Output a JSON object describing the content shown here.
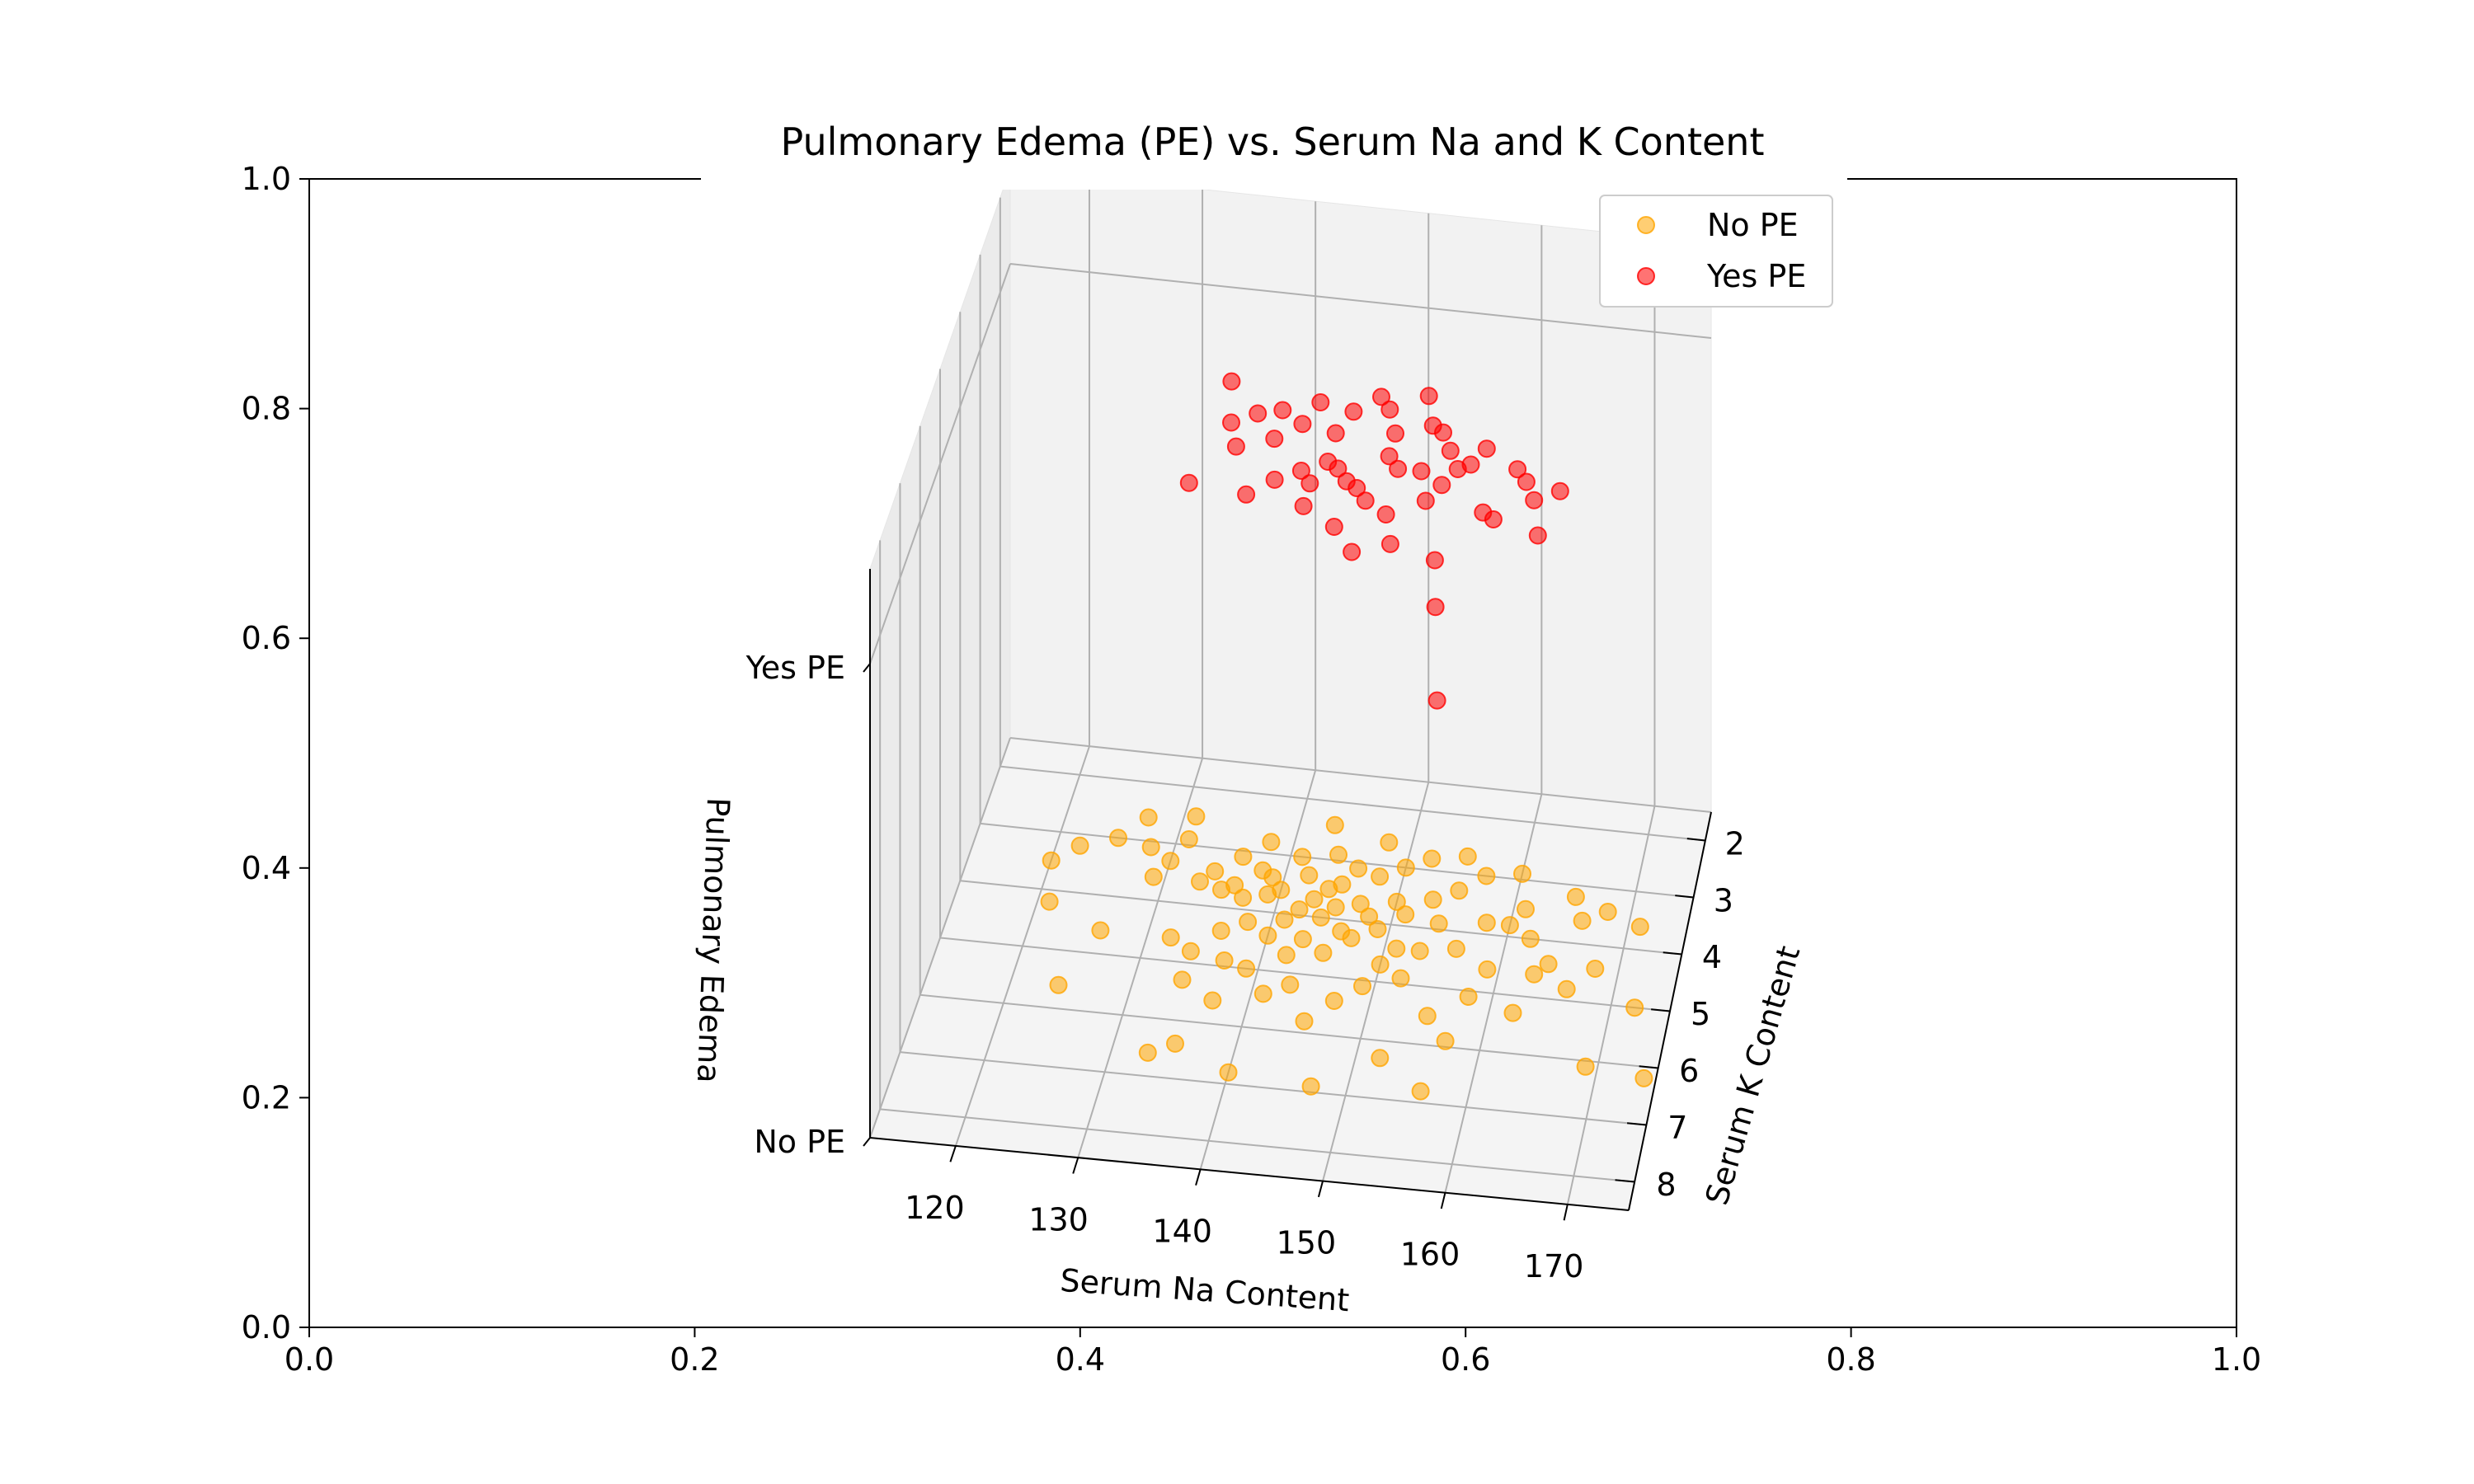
{
  "chart_data": {
    "type": "scatter",
    "title": "Pulmonary Edema (PE) vs. Serum Na and K Content",
    "xlabel": "Serum Na Content",
    "ylabel": "Serum K Content",
    "zlabel": "Pulmonary Edema",
    "xlim": [
      113,
      175
    ],
    "ylim": [
      1.5,
      8.5
    ],
    "zlim": [
      0,
      1
    ],
    "x_ticks": [
      120,
      130,
      140,
      150,
      160,
      170
    ],
    "y_ticks": [
      2,
      3,
      4,
      5,
      6,
      7,
      8
    ],
    "z_ticks": [
      0,
      1
    ],
    "z_tick_labels": [
      "No PE",
      "Yes PE"
    ],
    "outer_axes": {
      "xlim": [
        0,
        1
      ],
      "ylim": [
        0,
        1
      ],
      "x_ticks": [
        "0.0",
        "0.2",
        "0.4",
        "0.6",
        "0.8",
        "1.0"
      ],
      "y_ticks": [
        "0.0",
        "0.2",
        "0.4",
        "0.6",
        "0.8",
        "1.0"
      ]
    },
    "grid": true,
    "legend": {
      "placement": "top-right",
      "entries": [
        "No PE",
        "Yes PE"
      ]
    },
    "series": [
      {
        "name": "No PE",
        "color": "#ffa500",
        "z": 0,
        "points": [
          [
            120,
            3.5
          ],
          [
            122,
            3.2
          ],
          [
            125,
            3.0
          ],
          [
            121,
            4.2
          ],
          [
            124,
            5.6
          ],
          [
            126,
            4.6
          ],
          [
            128,
            3.1
          ],
          [
            129,
            3.6
          ],
          [
            130,
            3.3
          ],
          [
            131,
            2.9
          ],
          [
            133,
            3.6
          ],
          [
            132,
            4.6
          ],
          [
            134,
            5.3
          ],
          [
            135,
            6.4
          ],
          [
            133,
            6.6
          ],
          [
            136,
            3.1
          ],
          [
            137,
            3.8
          ],
          [
            136,
            4.4
          ],
          [
            138,
            2.8
          ],
          [
            139,
            3.4
          ],
          [
            138,
            4.2
          ],
          [
            139,
            5.0
          ],
          [
            137,
            5.6
          ],
          [
            141,
            3.0
          ],
          [
            140,
            3.6
          ],
          [
            142,
            3.3
          ],
          [
            141,
            4.1
          ],
          [
            142,
            4.7
          ],
          [
            143,
            5.2
          ],
          [
            144,
            2.9
          ],
          [
            145,
            3.4
          ],
          [
            144,
            4.0
          ],
          [
            146,
            3.1
          ],
          [
            145,
            4.6
          ],
          [
            147,
            3.7
          ],
          [
            148,
            3.2
          ],
          [
            147,
            5.4
          ],
          [
            149,
            4.1
          ],
          [
            150,
            3.0
          ],
          [
            150,
            3.6
          ],
          [
            151,
            4.4
          ],
          [
            152,
            2.8
          ],
          [
            153,
            3.5
          ],
          [
            152,
            4.9
          ],
          [
            154,
            3.9
          ],
          [
            155,
            3.3
          ],
          [
            156,
            4.3
          ],
          [
            157,
            3.0
          ],
          [
            158,
            3.8
          ],
          [
            158,
            5.1
          ],
          [
            160,
            2.9
          ],
          [
            161,
            3.5
          ],
          [
            162,
            4.0
          ],
          [
            163,
            4.6
          ],
          [
            165,
            3.2
          ],
          [
            166,
            3.6
          ],
          [
            168,
            4.4
          ],
          [
            169,
            6.1
          ],
          [
            172,
            5.0
          ],
          [
            174,
            6.2
          ],
          [
            140,
            6.8
          ],
          [
            147,
            6.9
          ],
          [
            152,
            6.3
          ],
          [
            157,
            5.9
          ],
          [
            156,
            6.8
          ],
          [
            145,
            5.8
          ],
          [
            134,
            4.8
          ],
          [
            127,
            2.6
          ],
          [
            131,
            2.5
          ],
          [
            143,
            2.4
          ],
          [
            148,
            2.6
          ],
          [
            155,
            2.7
          ],
          [
            160,
            3.8
          ],
          [
            162,
            5.3
          ],
          [
            164,
            4.4
          ],
          [
            168,
            3.4
          ],
          [
            171,
            3.6
          ],
          [
            159,
            4.6
          ],
          [
            153,
            4.4
          ],
          [
            135,
            3.7
          ],
          [
            143,
            3.7
          ],
          [
            150,
            4.7
          ],
          [
            155,
            5.5
          ],
          [
            166,
            4.8
          ],
          [
            141,
            5.4
          ],
          [
            137,
            4.9
          ],
          [
            149,
            5.1
          ],
          [
            146,
            4.2
          ],
          [
            139,
            3.7
          ],
          [
            142,
            3.9
          ],
          [
            144,
            3.5
          ],
          [
            147,
            4.3
          ],
          [
            151,
            3.8
          ],
          [
            138,
            3.3
          ],
          [
            136,
            3.6
          ],
          [
            134,
            3.4
          ],
          [
            145,
            3.8
          ],
          [
            148,
            3.9
          ],
          [
            140,
            4.4
          ],
          [
            143,
            4.4
          ]
        ]
      },
      {
        "name": "Yes PE",
        "color": "#ff0000",
        "z": 1,
        "points": [
          [
            135,
            3.1
          ],
          [
            138,
            3.6
          ],
          [
            140,
            4.0
          ],
          [
            143,
            3.3
          ],
          [
            145,
            3.8
          ],
          [
            146,
            4.4
          ],
          [
            148,
            3.1
          ],
          [
            150,
            3.7
          ],
          [
            151,
            4.3
          ],
          [
            153,
            3.5
          ],
          [
            155,
            3.9
          ],
          [
            154,
            4.8
          ],
          [
            157,
            4.1
          ],
          [
            159,
            4.9
          ],
          [
            162,
            4.3
          ],
          [
            165,
            4.4
          ],
          [
            144,
            5.1
          ],
          [
            147,
            5.4
          ],
          [
            149,
            4.9
          ],
          [
            152,
            5.6
          ],
          [
            156,
            5.8
          ],
          [
            141,
            4.7
          ],
          [
            143,
            4.5
          ],
          [
            139,
            5.0
          ],
          [
            146,
            3.4
          ],
          [
            149,
            3.3
          ],
          [
            152,
            3.0
          ],
          [
            148,
            4.7
          ],
          [
            145,
            4.3
          ],
          [
            137,
            4.2
          ],
          [
            163,
            4.6
          ],
          [
            158,
            3.8
          ],
          [
            151,
            5.1
          ],
          [
            147,
            4.6
          ],
          [
            155,
            4.5
          ],
          [
            160,
            5.0
          ],
          [
            142,
            3.7
          ],
          [
            150,
            4.1
          ],
          [
            153,
            4.3
          ],
          [
            156,
            4.2
          ],
          [
            164,
            5.2
          ],
          [
            161,
            4.1
          ],
          [
            157,
            6.6
          ],
          [
            159,
            8.2
          ],
          [
            134,
            4.9
          ],
          [
            136,
            3.8
          ],
          [
            144,
            4.7
          ],
          [
            154,
            3.6
          ],
          [
            149,
            5.8
          ],
          [
            140,
            3.5
          ]
        ]
      }
    ]
  }
}
